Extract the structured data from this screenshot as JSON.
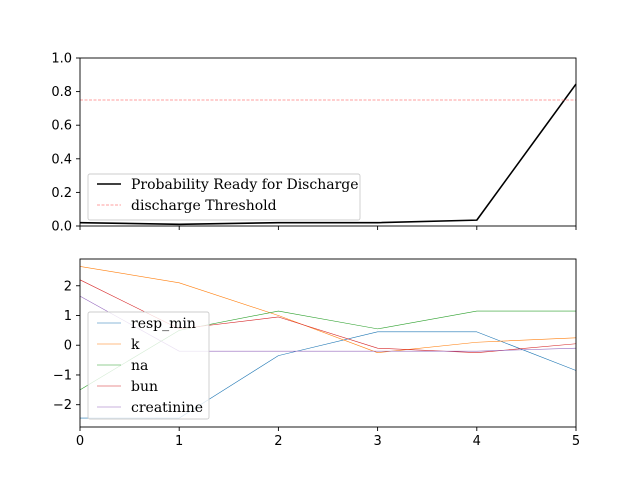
{
  "chart_data": [
    {
      "type": "line",
      "x": [
        0,
        1,
        2,
        3,
        4,
        5
      ],
      "xlim": [
        0,
        5
      ],
      "ylim": [
        0,
        1.0
      ],
      "x_ticks": [
        "0",
        "1",
        "2",
        "3",
        "4",
        "5"
      ],
      "y_ticks": [
        "0.0",
        "0.2",
        "0.4",
        "0.6",
        "0.8",
        "1.0"
      ],
      "y_tick_values": [
        0,
        0.2,
        0.4,
        0.6,
        0.8,
        1.0
      ],
      "show_x_tick_labels": false,
      "legend_position": "lower-left",
      "series": [
        {
          "name": "Probability Ready for Discharge",
          "values": [
            0.02,
            0.01,
            0.02,
            0.02,
            0.035,
            0.845
          ],
          "color": "#000000",
          "style": "solid",
          "width": 1.6
        },
        {
          "name": "discharge Threshold",
          "values": [
            0.75,
            0.75,
            0.75,
            0.75,
            0.75,
            0.75
          ],
          "color": "#ff8080",
          "style": "dashed",
          "width": 0.7
        }
      ]
    },
    {
      "type": "line",
      "x": [
        0,
        1,
        2,
        3,
        4,
        5
      ],
      "xlim": [
        0,
        5
      ],
      "ylim": [
        -2.75,
        2.9
      ],
      "x_ticks": [
        "0",
        "1",
        "2",
        "3",
        "4",
        "5"
      ],
      "y_ticks": [
        "2",
        "1",
        "0",
        "−1",
        "−2"
      ],
      "y_tick_values": [
        2,
        1,
        0,
        -1,
        -2
      ],
      "show_x_tick_labels": true,
      "legend_position": "lower-left",
      "series": [
        {
          "name": "resp_min",
          "values": [
            -2.45,
            -2.45,
            -0.35,
            0.45,
            0.45,
            -0.85
          ],
          "color": "#1f77b4",
          "style": "solid",
          "width": 0.6
        },
        {
          "name": "k",
          "values": [
            2.65,
            2.1,
            1.0,
            -0.25,
            0.1,
            0.25
          ],
          "color": "#ff7f0e",
          "style": "solid",
          "width": 0.6
        },
        {
          "name": "na",
          "values": [
            -1.5,
            0.5,
            1.15,
            0.55,
            1.15,
            1.15
          ],
          "color": "#2ca02c",
          "style": "solid",
          "width": 0.6
        },
        {
          "name": "bun",
          "values": [
            2.2,
            0.55,
            0.95,
            -0.1,
            -0.25,
            0.05
          ],
          "color": "#d62728",
          "style": "solid",
          "width": 0.6
        },
        {
          "name": "creatinine",
          "values": [
            1.65,
            -0.2,
            -0.2,
            -0.2,
            -0.2,
            -0.1
          ],
          "color": "#9467bd",
          "style": "solid",
          "width": 0.6
        }
      ]
    }
  ]
}
